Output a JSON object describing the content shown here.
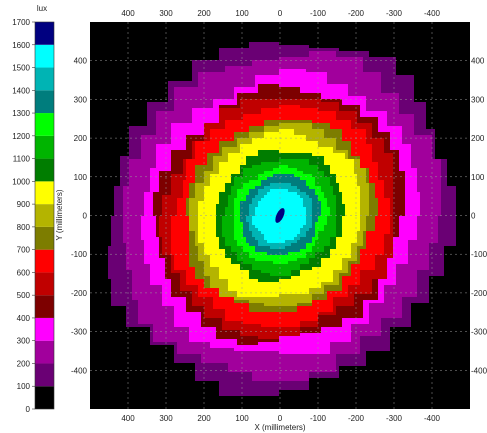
{
  "chart_data": {
    "type": "heatmap",
    "title": "",
    "colorbar": {
      "unit_label": "lux",
      "min": 0,
      "max": 1700,
      "step": 100,
      "tick_labels": [
        "0",
        "100",
        "200",
        "300",
        "400",
        "500",
        "600",
        "700",
        "800",
        "900",
        "1000",
        "1100",
        "1200",
        "1300",
        "1400",
        "1500",
        "1600",
        "1700"
      ],
      "bands": [
        {
          "from": 0,
          "to": 100,
          "color": "#000000"
        },
        {
          "from": 100,
          "to": 200,
          "color": "#6a0074"
        },
        {
          "from": 200,
          "to": 300,
          "color": "#a1009c"
        },
        {
          "from": 300,
          "to": 400,
          "color": "#ff00ff"
        },
        {
          "from": 400,
          "to": 500,
          "color": "#7d0000"
        },
        {
          "from": 500,
          "to": 600,
          "color": "#c00000"
        },
        {
          "from": 600,
          "to": 700,
          "color": "#ff0000"
        },
        {
          "from": 700,
          "to": 800,
          "color": "#7d7d00"
        },
        {
          "from": 800,
          "to": 900,
          "color": "#b4b400"
        },
        {
          "from": 900,
          "to": 1000,
          "color": "#ffff00"
        },
        {
          "from": 1000,
          "to": 1100,
          "color": "#007d00"
        },
        {
          "from": 1100,
          "to": 1200,
          "color": "#00b400"
        },
        {
          "from": 1200,
          "to": 1300,
          "color": "#00ff00"
        },
        {
          "from": 1300,
          "to": 1400,
          "color": "#007d7d"
        },
        {
          "from": 1400,
          "to": 1500,
          "color": "#00b4b4"
        },
        {
          "from": 1500,
          "to": 1600,
          "color": "#00ffff"
        },
        {
          "from": 1600,
          "to": 1700,
          "color": "#000080"
        }
      ]
    },
    "xlabel": "X (millimeters)",
    "ylabel": "Y (millimeters)",
    "xlim": [
      500,
      -500
    ],
    "ylim": [
      -500,
      500
    ],
    "x_ticks": [
      "400",
      "300",
      "200",
      "100",
      "0",
      "-100",
      "-200",
      "-300",
      "-400"
    ],
    "x_tick_values": [
      400,
      300,
      200,
      100,
      0,
      -100,
      -200,
      -300,
      -400
    ],
    "y_ticks": [
      "400",
      "300",
      "200",
      "100",
      "0",
      "-100",
      "-200",
      "-300",
      "-400"
    ],
    "y_tick_values": [
      400,
      300,
      200,
      100,
      0,
      -100,
      -200,
      -300,
      -400
    ],
    "grid": true,
    "background": "#000000",
    "contours": [
      {
        "level": 100,
        "color": "#6a0074",
        "radius_mm": 455
      },
      {
        "level": 200,
        "color": "#a1009c",
        "radius_mm": 420
      },
      {
        "level": 300,
        "color": "#ff00ff",
        "radius_mm": 365
      },
      {
        "level": 400,
        "color": "#7d0000",
        "radius_mm": 330
      },
      {
        "level": 500,
        "color": "#c00000",
        "radius_mm": 310
      },
      {
        "level": 600,
        "color": "#ff0000",
        "radius_mm": 285
      },
      {
        "level": 700,
        "color": "#7d7d00",
        "radius_mm": 250
      },
      {
        "level": 800,
        "color": "#b4b400",
        "radius_mm": 235
      },
      {
        "level": 900,
        "color": "#ffff00",
        "radius_mm": 215
      },
      {
        "level": 1000,
        "color": "#007d00",
        "radius_mm": 170
      },
      {
        "level": 1100,
        "color": "#00b400",
        "radius_mm": 150
      },
      {
        "level": 1200,
        "color": "#00ff00",
        "radius_mm": 125
      },
      {
        "level": 1300,
        "color": "#007d7d",
        "radius_mm": 105
      },
      {
        "level": 1400,
        "color": "#00b4b4",
        "radius_mm": 85
      },
      {
        "level": 1500,
        "color": "#00ffff",
        "radius_mm": 70
      }
    ],
    "peak": {
      "x_mm": 0,
      "y_mm": 0,
      "color": "#000080",
      "level": 1600
    }
  }
}
